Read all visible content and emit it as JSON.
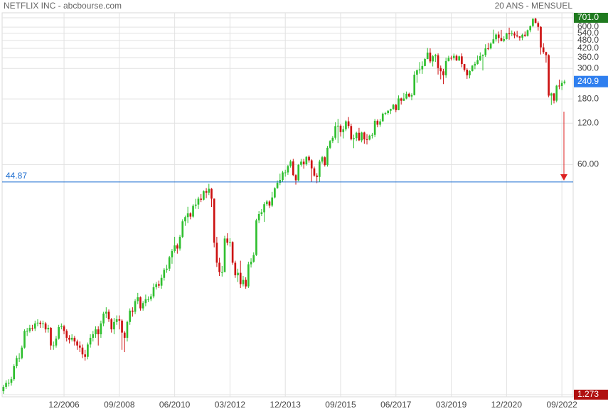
{
  "chart_data": {
    "type": "candlestick",
    "title": "NETFLIX INC - abcbourse.com",
    "subtitle": "20 ANS - MENSUEL",
    "log_scale": true,
    "grid": true,
    "up_color": "#2fbf2f",
    "down_color": "#cc1111",
    "ylim": [
      1.273,
      701.0
    ],
    "yticks": [
      {
        "value": 701.0,
        "label": "701.0"
      },
      {
        "value": 600,
        "label": "600.0"
      },
      {
        "value": 540,
        "label": "540.0"
      },
      {
        "value": 480,
        "label": "480.0"
      },
      {
        "value": 420,
        "label": "420.0"
      },
      {
        "value": 360,
        "label": "360.0"
      },
      {
        "value": 300,
        "label": "300.0"
      },
      {
        "value": 180,
        "label": "180.0"
      },
      {
        "value": 120,
        "label": "120.0"
      },
      {
        "value": 60,
        "label": "60.00"
      },
      {
        "value": 1.273,
        "label": "1.273"
      }
    ],
    "last_price": {
      "value": 240.9,
      "label": "240.9"
    },
    "level": {
      "value": 44.87,
      "label": "44.87",
      "color": "#1f6fd0"
    },
    "categories": [
      null,
      null,
      null,
      null,
      null,
      null,
      null,
      null,
      null,
      null,
      null,
      null,
      null,
      null,
      null,
      null,
      null,
      null,
      null,
      null,
      null,
      null,
      null,
      "12/2006",
      null,
      null,
      null,
      null,
      null,
      null,
      null,
      null,
      null,
      null,
      null,
      null,
      null,
      null,
      null,
      null,
      null,
      null,
      null,
      null,
      "09/2008",
      null,
      null,
      null,
      null,
      null,
      null,
      null,
      null,
      null,
      null,
      null,
      null,
      null,
      null,
      null,
      null,
      null,
      null,
      null,
      null,
      "06/2010",
      null,
      null,
      null,
      null,
      null,
      null,
      null,
      null,
      null,
      null,
      null,
      null,
      null,
      null,
      null,
      null,
      null,
      null,
      null,
      null,
      "03/2012",
      null,
      null,
      null,
      null,
      null,
      null,
      null,
      null,
      null,
      null,
      null,
      null,
      null,
      null,
      null,
      null,
      null,
      null,
      null,
      null,
      "12/2013",
      null,
      null,
      null,
      null,
      null,
      null,
      null,
      null,
      null,
      null,
      null,
      null,
      null,
      null,
      null,
      null,
      null,
      null,
      null,
      null,
      "09/2015",
      null,
      null,
      null,
      null,
      null,
      null,
      null,
      null,
      null,
      null,
      null,
      null,
      null,
      null,
      null,
      null,
      null,
      null,
      null,
      null,
      "06/2017",
      null,
      null,
      null,
      null,
      null,
      null,
      null,
      null,
      null,
      null,
      null,
      null,
      null,
      null,
      null,
      null,
      null,
      null,
      null,
      null,
      "03/2019",
      null,
      null,
      null,
      null,
      null,
      null,
      null,
      null,
      null,
      null,
      null,
      null,
      null,
      null,
      null,
      null,
      null,
      null,
      null,
      null,
      "12/2020",
      null,
      null,
      null,
      null,
      null,
      null,
      null,
      null,
      null,
      null,
      null,
      null,
      null,
      null,
      null,
      null,
      null,
      null,
      null,
      null,
      "09/2022",
      null
    ],
    "ohlc": [
      [
        1.35,
        1.5,
        1.29,
        1.45
      ],
      [
        1.45,
        1.62,
        1.4,
        1.55
      ],
      [
        1.55,
        1.65,
        1.46,
        1.55
      ],
      [
        1.55,
        1.72,
        1.48,
        1.65
      ],
      [
        1.65,
        2.12,
        1.6,
        2.05
      ],
      [
        2.05,
        2.45,
        1.98,
        2.35
      ],
      [
        2.35,
        2.55,
        2.2,
        2.35
      ],
      [
        2.35,
        2.9,
        2.3,
        2.8
      ],
      [
        2.8,
        3.8,
        2.75,
        3.7
      ],
      [
        3.7,
        3.9,
        3.4,
        3.7
      ],
      [
        3.7,
        4.1,
        3.6,
        3.9
      ],
      [
        3.9,
        4.1,
        3.7,
        3.85
      ],
      [
        3.85,
        4.4,
        3.7,
        4.2
      ],
      [
        4.2,
        4.5,
        4.0,
        4.25
      ],
      [
        4.25,
        4.4,
        3.9,
        4.15
      ],
      [
        4.15,
        4.4,
        3.9,
        4.2
      ],
      [
        4.2,
        4.3,
        3.6,
        3.8
      ],
      [
        3.8,
        4.1,
        3.6,
        3.9
      ],
      [
        3.9,
        3.95,
        2.7,
        2.9
      ],
      [
        2.9,
        3.1,
        2.7,
        2.9
      ],
      [
        2.9,
        3.4,
        2.8,
        3.25
      ],
      [
        3.25,
        4.1,
        3.2,
        3.95
      ],
      [
        3.95,
        4.2,
        3.8,
        4.0
      ],
      [
        4.0,
        4.1,
        3.5,
        3.7
      ],
      [
        3.7,
        3.8,
        3.1,
        3.3
      ],
      [
        3.3,
        3.45,
        3.0,
        3.2
      ],
      [
        3.2,
        3.5,
        3.1,
        3.3
      ],
      [
        3.3,
        3.4,
        2.9,
        3.1
      ],
      [
        3.1,
        3.2,
        2.7,
        2.9
      ],
      [
        2.9,
        3.1,
        2.6,
        2.8
      ],
      [
        2.8,
        2.95,
        2.35,
        2.5
      ],
      [
        2.5,
        2.7,
        2.25,
        2.4
      ],
      [
        2.4,
        3.05,
        2.3,
        2.95
      ],
      [
        2.95,
        3.5,
        2.8,
        3.3
      ],
      [
        3.3,
        3.7,
        3.1,
        3.5
      ],
      [
        3.5,
        4.0,
        3.3,
        3.8
      ],
      [
        3.8,
        4.0,
        2.9,
        3.5
      ],
      [
        3.5,
        4.4,
        3.3,
        4.2
      ],
      [
        4.2,
        5.1,
        4.0,
        4.95
      ],
      [
        4.95,
        5.5,
        4.6,
        5.1
      ],
      [
        5.1,
        5.3,
        4.3,
        4.5
      ],
      [
        4.5,
        4.6,
        3.6,
        3.8
      ],
      [
        3.8,
        4.6,
        3.5,
        4.3
      ],
      [
        4.3,
        4.8,
        4.1,
        4.5
      ],
      [
        4.5,
        4.8,
        3.8,
        4.4
      ],
      [
        4.4,
        4.5,
        2.7,
        3.6
      ],
      [
        3.6,
        3.7,
        2.6,
        3.3
      ],
      [
        3.3,
        4.4,
        3.1,
        4.3
      ],
      [
        4.3,
        5.4,
        4.1,
        5.2
      ],
      [
        5.2,
        5.5,
        4.7,
        5.1
      ],
      [
        5.1,
        6.3,
        4.9,
        6.1
      ],
      [
        6.1,
        7.0,
        5.8,
        6.5
      ],
      [
        6.5,
        6.6,
        5.2,
        5.4
      ],
      [
        5.4,
        6.1,
        5.2,
        5.9
      ],
      [
        5.9,
        6.8,
        5.6,
        6.3
      ],
      [
        6.3,
        6.6,
        6.0,
        6.3
      ],
      [
        6.3,
        6.9,
        6.1,
        6.6
      ],
      [
        6.6,
        8.2,
        6.4,
        7.7
      ],
      [
        7.7,
        8.4,
        7.4,
        8.1
      ],
      [
        8.1,
        8.6,
        7.6,
        7.9
      ],
      [
        7.9,
        9.5,
        7.5,
        9.0
      ],
      [
        9.0,
        10.6,
        8.6,
        10.3
      ],
      [
        10.3,
        11.2,
        9.8,
        10.5
      ],
      [
        10.5,
        13.0,
        10.1,
        12.7
      ],
      [
        12.7,
        14.6,
        11.4,
        14.1
      ],
      [
        14.1,
        17.9,
        13.7,
        15.5
      ],
      [
        15.5,
        16.0,
        13.5,
        14.7
      ],
      [
        14.7,
        18.5,
        14.2,
        17.9
      ],
      [
        17.9,
        24.0,
        17.5,
        23.2
      ],
      [
        23.2,
        25.5,
        21.5,
        24.9
      ],
      [
        24.9,
        29.6,
        22.5,
        26.5
      ],
      [
        26.5,
        27.0,
        24.0,
        25.1
      ],
      [
        25.1,
        30.9,
        24.6,
        30.1
      ],
      [
        30.1,
        33.8,
        28.6,
        30.7
      ],
      [
        30.7,
        35.0,
        28.5,
        33.9
      ],
      [
        33.9,
        36.6,
        32.0,
        33.3
      ],
      [
        33.3,
        39.0,
        32.9,
        38.4
      ],
      [
        38.4,
        40.5,
        34.2,
        37.5
      ],
      [
        37.5,
        43.5,
        36.0,
        40.0
      ],
      [
        40.0,
        40.5,
        29.5,
        33.9
      ],
      [
        33.9,
        34.0,
        15.0,
        16.2
      ],
      [
        16.2,
        17.9,
        10.8,
        11.6
      ],
      [
        11.6,
        12.6,
        9.3,
        9.9
      ],
      [
        9.9,
        11.0,
        9.2,
        9.9
      ],
      [
        9.9,
        18.2,
        10.0,
        17.4
      ],
      [
        17.4,
        19.0,
        15.5,
        16.2
      ],
      [
        16.2,
        17.5,
        15.2,
        16.4
      ],
      [
        16.4,
        16.6,
        11.2,
        11.6
      ],
      [
        11.6,
        12.0,
        9.0,
        9.4
      ],
      [
        9.4,
        10.5,
        8.4,
        9.8
      ],
      [
        9.8,
        12.0,
        7.6,
        8.1
      ],
      [
        8.1,
        9.3,
        7.8,
        8.7
      ],
      [
        8.7,
        9.1,
        7.5,
        7.8
      ],
      [
        7.8,
        11.8,
        7.6,
        11.3
      ],
      [
        11.3,
        12.5,
        10.7,
        11.8
      ],
      [
        11.8,
        13.8,
        11.6,
        13.2
      ],
      [
        13.2,
        24.2,
        13.0,
        23.6
      ],
      [
        23.6,
        27.5,
        22.5,
        26.2
      ],
      [
        26.2,
        28.5,
        25.3,
        27.0
      ],
      [
        27.0,
        32.0,
        23.0,
        30.9
      ],
      [
        30.9,
        33.2,
        30.0,
        32.3
      ],
      [
        32.3,
        33.0,
        29.0,
        30.2
      ],
      [
        30.2,
        38.0,
        29.5,
        34.6
      ],
      [
        34.6,
        41.0,
        34.0,
        40.4
      ],
      [
        40.4,
        46.0,
        40.0,
        44.2
      ],
      [
        44.2,
        51.5,
        42.5,
        46.4
      ],
      [
        46.4,
        54.0,
        44.9,
        52.6
      ],
      [
        52.6,
        55.0,
        49.0,
        52.6
      ],
      [
        52.6,
        59.7,
        50.5,
        58.5
      ],
      [
        58.5,
        65.0,
        57.0,
        63.3
      ],
      [
        63.3,
        66.0,
        49.5,
        50.3
      ],
      [
        50.3,
        51.0,
        42.9,
        46.1
      ],
      [
        46.1,
        60.5,
        45.4,
        59.8
      ],
      [
        59.8,
        66.0,
        58.0,
        63.0
      ],
      [
        63.0,
        66.0,
        56.0,
        60.3
      ],
      [
        60.3,
        69.0,
        59.0,
        68.3
      ],
      [
        68.3,
        70.0,
        62.0,
        64.4
      ],
      [
        64.4,
        65.5,
        45.0,
        56.3
      ],
      [
        56.3,
        58.0,
        49.0,
        49.9
      ],
      [
        49.9,
        52.0,
        44.0,
        48.8
      ],
      [
        48.8,
        65.0,
        45.0,
        63.1
      ],
      [
        63.1,
        69.5,
        61.0,
        67.8
      ],
      [
        67.8,
        69.0,
        58.0,
        59.5
      ],
      [
        59.5,
        82.0,
        58.0,
        79.5
      ],
      [
        79.5,
        90.5,
        78.0,
        89.0
      ],
      [
        89.0,
        97.0,
        86.0,
        94.0
      ],
      [
        94.0,
        122.0,
        91.0,
        114.3
      ],
      [
        114.3,
        129.0,
        86.0,
        115.0
      ],
      [
        115.0,
        118.0,
        96.0,
        103.3
      ],
      [
        103.3,
        115.0,
        93.0,
        108.4
      ],
      [
        108.4,
        126.0,
        105.0,
        123.8
      ],
      [
        123.8,
        133.0,
        110.0,
        114.4
      ],
      [
        114.4,
        119.0,
        90.0,
        91.8
      ],
      [
        91.8,
        99.0,
        79.0,
        93.4
      ],
      [
        93.4,
        104.0,
        89.0,
        102.2
      ],
      [
        102.2,
        111.0,
        89.0,
        90.0
      ],
      [
        90.0,
        104.0,
        87.0,
        102.6
      ],
      [
        102.6,
        104.0,
        85.0,
        91.5
      ],
      [
        91.5,
        100.0,
        84.0,
        91.2
      ],
      [
        91.2,
        99.0,
        90.0,
        97.5
      ],
      [
        97.5,
        102.0,
        93.0,
        98.6
      ],
      [
        98.6,
        129.0,
        95.0,
        124.9
      ],
      [
        124.9,
        128.0,
        112.0,
        117.0
      ],
      [
        117.0,
        129.0,
        113.0,
        123.8
      ],
      [
        123.8,
        143.0,
        123.0,
        140.7
      ],
      [
        140.7,
        145.0,
        137.0,
        142.1
      ],
      [
        142.1,
        149.0,
        138.0,
        147.8
      ],
      [
        147.8,
        153.0,
        140.0,
        152.2
      ],
      [
        152.2,
        166.0,
        150.0,
        163.1
      ],
      [
        163.1,
        166.0,
        144.0,
        149.4
      ],
      [
        149.4,
        191.0,
        149.0,
        181.7
      ],
      [
        181.7,
        184.0,
        164.0,
        174.7
      ],
      [
        174.7,
        199.0,
        174.0,
        181.4
      ],
      [
        181.4,
        204.0,
        179.0,
        196.4
      ],
      [
        196.4,
        200.0,
        185.0,
        187.6
      ],
      [
        187.6,
        198.0,
        176.0,
        192.0
      ],
      [
        192.0,
        286.0,
        191.0,
        270.3
      ],
      [
        270.3,
        295.0,
        236.0,
        291.4
      ],
      [
        291.4,
        334.0,
        275.0,
        295.4
      ],
      [
        295.4,
        338.0,
        274.0,
        312.5
      ],
      [
        312.5,
        356.0,
        311.0,
        351.6
      ],
      [
        351.6,
        423.0,
        350.0,
        391.4
      ],
      [
        391.4,
        420.0,
        327.0,
        337.5
      ],
      [
        337.5,
        376.0,
        310.0,
        367.7
      ],
      [
        367.7,
        383.0,
        335.0,
        374.1
      ],
      [
        374.1,
        386.0,
        271.0,
        301.8
      ],
      [
        301.8,
        315.0,
        250.0,
        286.1
      ],
      [
        286.1,
        298.0,
        231.0,
        267.7
      ],
      [
        267.7,
        359.0,
        256.0,
        339.5
      ],
      [
        339.5,
        371.0,
        337.0,
        358.1
      ],
      [
        358.1,
        371.0,
        343.0,
        356.6
      ],
      [
        356.6,
        385.0,
        344.0,
        370.5
      ],
      [
        370.5,
        379.0,
        340.0,
        343.3
      ],
      [
        343.3,
        372.0,
        339.0,
        367.3
      ],
      [
        367.3,
        386.0,
        306.0,
        323.0
      ],
      [
        323.0,
        324.0,
        285.0,
        293.8
      ],
      [
        293.8,
        301.0,
        252.0,
        267.6
      ],
      [
        267.6,
        291.0,
        254.0,
        287.4
      ],
      [
        287.4,
        317.0,
        285.0,
        314.7
      ],
      [
        314.7,
        336.0,
        296.0,
        323.6
      ],
      [
        323.6,
        373.0,
        320.0,
        345.1
      ],
      [
        345.1,
        393.0,
        340.0,
        369.0
      ],
      [
        369.0,
        380.0,
        290.0,
        375.5
      ],
      [
        375.5,
        450.0,
        364.0,
        419.9
      ],
      [
        419.9,
        460.0,
        408.0,
        419.7
      ],
      [
        419.7,
        465.0,
        413.0,
        455.0
      ],
      [
        455.0,
        575.0,
        454.0,
        488.9
      ],
      [
        488.9,
        539.0,
        470.0,
        529.6
      ],
      [
        529.6,
        557.0,
        458.0,
        500.0
      ],
      [
        500.0,
        573.0,
        472.0,
        475.7
      ],
      [
        475.7,
        514.0,
        466.0,
        490.7
      ],
      [
        490.7,
        545.0,
        487.0,
        540.7
      ],
      [
        540.7,
        594.0,
        486.0,
        532.4
      ],
      [
        532.4,
        567.0,
        515.0,
        538.9
      ],
      [
        538.9,
        556.0,
        497.0,
        521.7
      ],
      [
        521.7,
        563.0,
        505.0,
        513.5
      ],
      [
        513.5,
        515.0,
        478.0,
        502.8
      ],
      [
        502.8,
        537.0,
        482.0,
        528.2
      ],
      [
        528.2,
        557.0,
        510.0,
        517.6
      ],
      [
        517.6,
        576.0,
        512.0,
        569.2
      ],
      [
        569.2,
        616.0,
        550.0,
        610.3
      ],
      [
        610.3,
        691.0,
        599.0,
        690.3
      ],
      [
        690.3,
        701.0,
        639.0,
        642.0
      ],
      [
        642.0,
        659.0,
        566.0,
        602.4
      ],
      [
        602.4,
        609.0,
        379.0,
        427.1
      ],
      [
        427.1,
        458.0,
        383.0,
        394.5
      ],
      [
        394.5,
        397.0,
        331.0,
        374.6
      ],
      [
        374.6,
        380.0,
        185.0,
        190.4
      ],
      [
        190.4,
        200.0,
        162.7,
        197.4
      ],
      [
        197.4,
        199.0,
        167.0,
        174.9
      ],
      [
        174.9,
        228.0,
        170.0,
        224.9
      ],
      [
        224.9,
        249.0,
        212.0,
        223.6
      ],
      [
        223.6,
        245.0,
        209.0,
        235.4
      ],
      [
        235.4,
        248.0,
        230.0,
        240.9
      ]
    ]
  }
}
